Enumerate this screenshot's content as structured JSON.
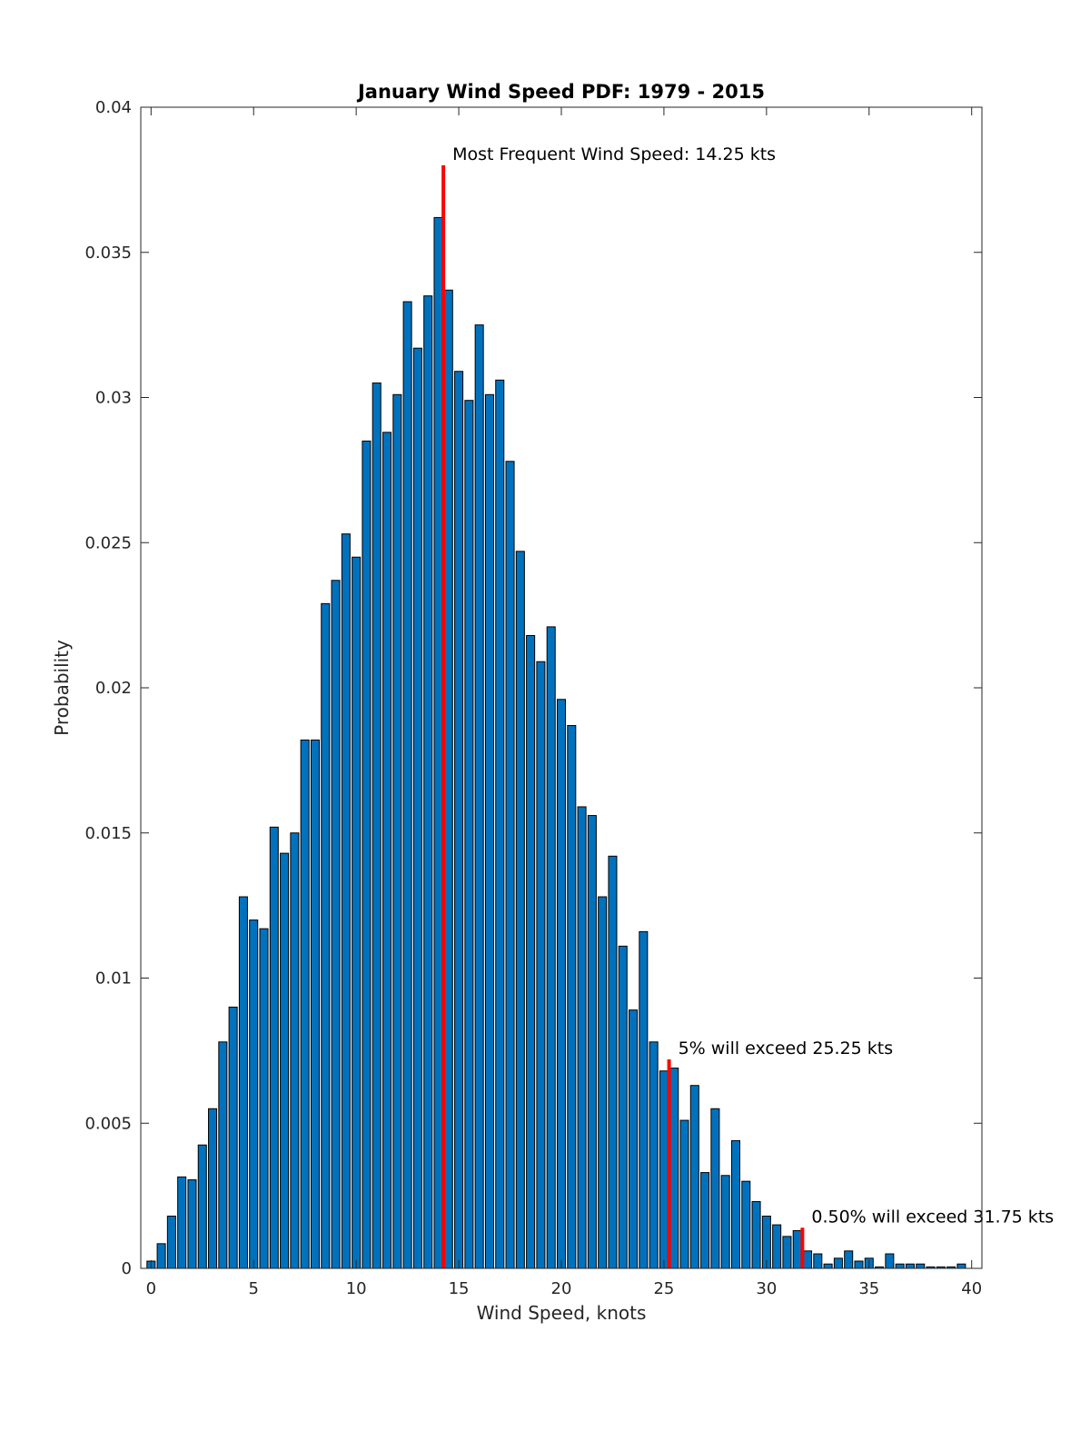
{
  "chart_data": {
    "type": "bar",
    "title": "January Wind Speed PDF: 1979 - 2015",
    "xlabel": "Wind Speed, knots",
    "ylabel": "Probability",
    "xlim": [
      -0.5,
      40.5
    ],
    "ylim": [
      0,
      0.04
    ],
    "xticks": [
      "0",
      "5",
      "10",
      "15",
      "20",
      "25",
      "30",
      "35",
      "40"
    ],
    "yticks": [
      "0",
      "0.005",
      "0.01",
      "0.015",
      "0.02",
      "0.025",
      "0.03",
      "0.035",
      "0.04"
    ],
    "grid": false,
    "bar_color": "#0072BD",
    "marker_color": "#FF0000",
    "bin_width": 0.5,
    "x": [
      0,
      0.5,
      1,
      1.5,
      2,
      2.5,
      3,
      3.5,
      4,
      4.5,
      5,
      5.5,
      6,
      6.5,
      7,
      7.5,
      8,
      8.5,
      9,
      9.5,
      10,
      10.5,
      11,
      11.5,
      12,
      12.5,
      13,
      13.5,
      14,
      14.5,
      15,
      15.5,
      16,
      16.5,
      17,
      17.5,
      18,
      18.5,
      19,
      19.5,
      20,
      20.5,
      21,
      21.5,
      22,
      22.5,
      23,
      23.5,
      24,
      24.5,
      25,
      25.5,
      26,
      26.5,
      27,
      27.5,
      28,
      28.5,
      29,
      29.5,
      30,
      30.5,
      31,
      31.5,
      32,
      32.5,
      33,
      33.5,
      34,
      34.5,
      35,
      35.5,
      36,
      36.5,
      37,
      37.5,
      38,
      38.5,
      39,
      39.5
    ],
    "values": [
      0.00025,
      0.00085,
      0.0018,
      0.00315,
      0.00305,
      0.00425,
      0.0055,
      0.0078,
      0.009,
      0.0128,
      0.012,
      0.0117,
      0.0152,
      0.0143,
      0.015,
      0.0182,
      0.0182,
      0.0229,
      0.0237,
      0.0253,
      0.0245,
      0.0285,
      0.0305,
      0.0288,
      0.0301,
      0.0333,
      0.0317,
      0.0335,
      0.0362,
      0.0337,
      0.0309,
      0.0299,
      0.0325,
      0.0301,
      0.0306,
      0.0278,
      0.0247,
      0.0218,
      0.0209,
      0.0221,
      0.0196,
      0.0187,
      0.0159,
      0.0156,
      0.0128,
      0.0142,
      0.0111,
      0.0089,
      0.0116,
      0.0078,
      0.0068,
      0.0069,
      0.0051,
      0.0063,
      0.0033,
      0.0055,
      0.0032,
      0.0044,
      0.003,
      0.0023,
      0.0018,
      0.0015,
      0.0011,
      0.0013,
      0.0006,
      0.0005,
      0.00015,
      0.00035,
      0.0006,
      0.00025,
      0.00035,
      5e-05,
      0.0005,
      0.00015,
      0.00015,
      0.00015,
      5e-05,
      5e-05,
      5e-05,
      0.00015
    ],
    "markers": [
      {
        "x": 14.25,
        "y": 0.038,
        "label": "Most Frequent Wind Speed: 14.25 kts"
      },
      {
        "x": 25.25,
        "y": 0.0072,
        "label": "5% will exceed 25.25 kts"
      },
      {
        "x": 31.75,
        "y": 0.0014,
        "label": "0.50% will exceed 31.75 kts"
      }
    ]
  }
}
